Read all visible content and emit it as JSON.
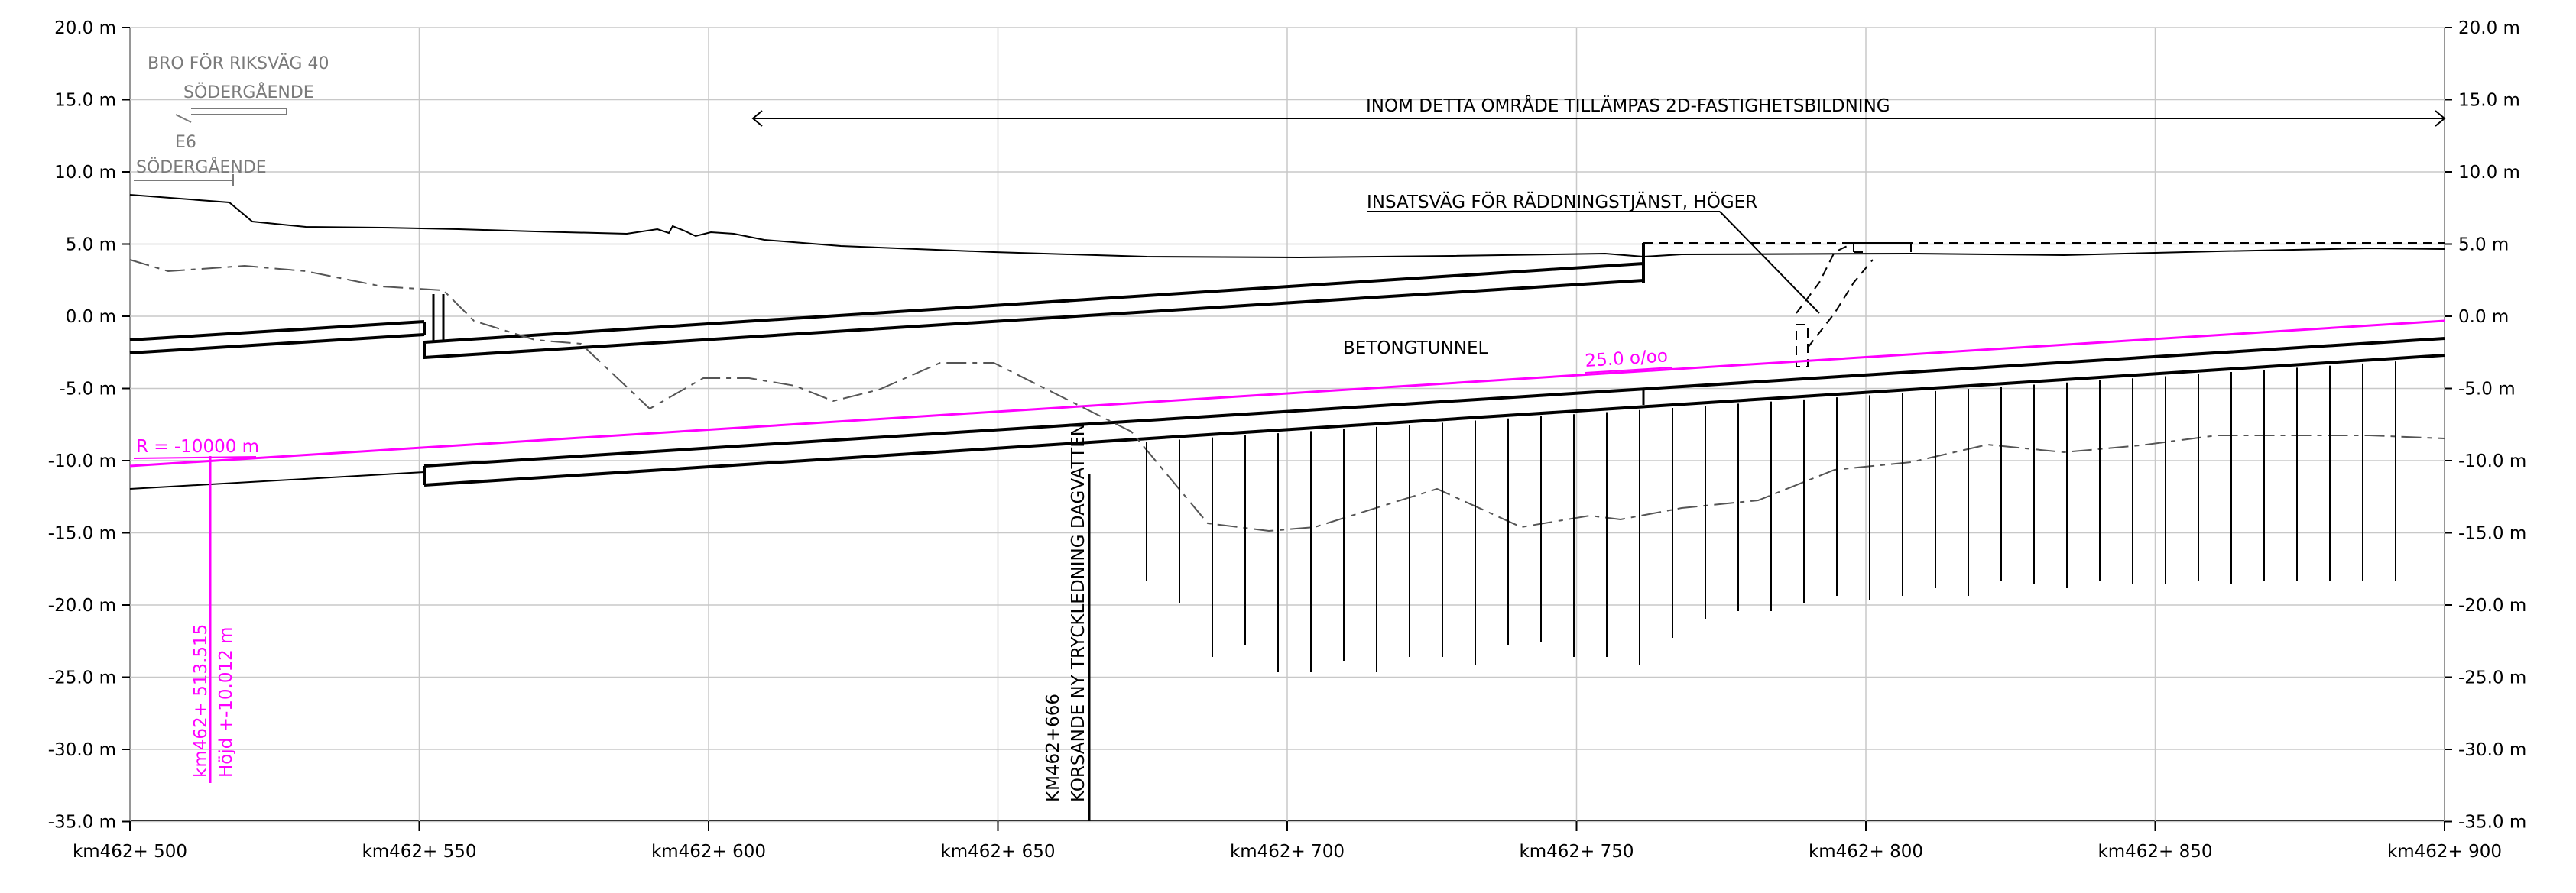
{
  "axes": {
    "y_ticks": [
      "20.0 m",
      "15.0 m",
      "10.0 m",
      "5.0 m",
      "0.0 m",
      "-5.0 m",
      "-10.0 m",
      "-15.0 m",
      "-20.0 m",
      "-25.0 m",
      "-30.0 m",
      "-35.0 m"
    ],
    "x_ticks": [
      "km462+ 500",
      "km462+ 550",
      "km462+ 600",
      "km462+ 650",
      "km462+ 700",
      "km462+ 750",
      "km462+ 800",
      "km462+ 850",
      "km462+ 900"
    ]
  },
  "labels": {
    "bridge": "BRO FÖR RIKSVÄG 40",
    "bridge_dir": "SÖDERGÅENDE",
    "e6": "E6",
    "e6_dir": "SÖDERGÅENDE",
    "area": "INOM DETTA OMRÅDE TILLÄMPAS 2D-FASTIGHETSBILDNING",
    "rescue": "INSATSVÄG FÖR RÄDDNINGSTJÄNST, HÖGER",
    "tunnel": "BETONGTUNNEL",
    "gradient": "25.0 o/oo",
    "radius": "R = -10000 m",
    "station": "km462+ 513.515",
    "height": "Höjd +-10.012 m",
    "crossing_km": "KM462+666",
    "crossing_desc": "KORSANDE NY TRYCKLEDNING DAGVATTEN"
  },
  "colors": {
    "profile": "#ff00ff",
    "grid": "#c8c8c8",
    "ink": "#000000",
    "annotation": "#7a7a7a"
  }
}
